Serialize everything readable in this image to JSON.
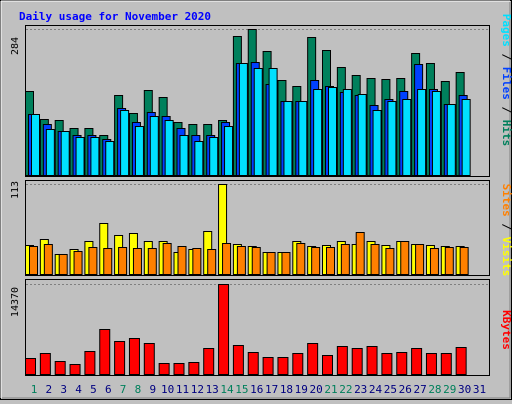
{
  "colors": {
    "background": "#c0c0c0",
    "title": "#0000ff",
    "hits": "#00805c",
    "files": "#0040ff",
    "pages": "#00e0ff",
    "visits": "#ffff00",
    "sites": "#ff8000",
    "kbytes": "#ff0000",
    "weekend_label": "#00805c",
    "weekday_label": "#000080"
  },
  "chart_data": {
    "type": "bar",
    "title": "Daily usage for November 2020",
    "x": [
      1,
      2,
      3,
      4,
      5,
      6,
      7,
      8,
      9,
      10,
      11,
      12,
      13,
      14,
      15,
      16,
      17,
      18,
      19,
      20,
      21,
      22,
      23,
      24,
      25,
      26,
      27,
      28,
      29,
      30,
      31
    ],
    "x_labels": [
      "1",
      "2",
      "3",
      "4",
      "5",
      "6",
      "7",
      "8",
      "9",
      "10",
      "11",
      "12",
      "13",
      "14",
      "15",
      "16",
      "17",
      "18",
      "19",
      "20",
      "21",
      "22",
      "23",
      "24",
      "25",
      "26",
      "27",
      "28",
      "29",
      "30",
      "31"
    ],
    "weekend_days": [
      1,
      7,
      8,
      14,
      15,
      21,
      22,
      28,
      29
    ],
    "panels": [
      {
        "id": "traffic",
        "ymax": 284,
        "ymax_label": "284",
        "right_label_parts": [
          {
            "text": "Pages",
            "color": "#00e0ff"
          },
          {
            "text": " / ",
            "color": "#000000"
          },
          {
            "text": "Files",
            "color": "#0040ff"
          },
          {
            "text": " / ",
            "color": "#000000"
          },
          {
            "text": "Hits",
            "color": "#00805c"
          }
        ],
        "series": [
          {
            "name": "Hits",
            "color": "#00805c",
            "values": [
              164,
              110,
              108,
              92,
              92,
              80,
              156,
              122,
              166,
              152,
              104,
              100,
              100,
              108,
              271,
              284,
              241,
              185,
              174,
              268,
              244,
              211,
              196,
              189,
              188,
              189,
              238,
              218,
              183,
              200,
              null
            ]
          },
          {
            "name": "Files",
            "color": "#0040ff",
            "values": [
              120,
              100,
              86,
              80,
              80,
              72,
              132,
              104,
              124,
              116,
              92,
              80,
              80,
              104,
              219,
              220,
              178,
              144,
              144,
              185,
              174,
              163,
              157,
              137,
              148,
              165,
              217,
              169,
              140,
              156,
              null
            ]
          },
          {
            "name": "Pages",
            "color": "#00e0ff",
            "values": [
              120,
              91,
              86,
              76,
              76,
              68,
              128,
              96,
              116,
              108,
              80,
              68,
              76,
              96,
              219,
              209,
              208,
              144,
              144,
              168,
              172,
              169,
              158,
              128,
              144,
              148,
              168,
              165,
              140,
              148,
              null
            ]
          }
        ]
      },
      {
        "id": "visits",
        "ymax": 113,
        "ymax_label": "113",
        "right_label_parts": [
          {
            "text": "Sites",
            "color": "#ff8000"
          },
          {
            "text": " / ",
            "color": "#000000"
          },
          {
            "text": "Visits",
            "color": "#ffff00"
          }
        ],
        "series": [
          {
            "name": "Visits",
            "color": "#ffff00",
            "values": [
              37,
              45,
              26,
              32,
              42,
              64,
              50,
              52,
              42,
              42,
              28,
              32,
              55,
              113,
              38,
              36,
              29,
              28,
              42,
              36,
              37,
              42,
              38,
              42,
              37,
              42,
              38,
              37,
              36,
              36,
              null
            ]
          },
          {
            "name": "Sites",
            "color": "#ff8000",
            "values": [
              36,
              38,
              26,
              30,
              35,
              33,
              35,
              33,
              33,
              40,
              36,
              34,
              32,
              40,
              36,
              35,
              28,
              28,
              40,
              35,
              35,
              38,
              54,
              38,
              34,
              42,
              38,
              34,
              35,
              35,
              null
            ]
          }
        ]
      },
      {
        "id": "kbytes",
        "ymax": 14370,
        "ymax_label": "14370",
        "right_label_parts": [
          {
            "text": "KBytes",
            "color": "#ff0000"
          }
        ],
        "series": [
          {
            "name": "KBytes",
            "color": "#ff0000",
            "values": [
              2700,
              3500,
              2200,
              1800,
              3800,
              7200,
              5300,
              5900,
              5100,
              1900,
              1900,
              2000,
              4300,
              14370,
              4700,
              3600,
              2900,
              2900,
              3500,
              5100,
              3100,
              4600,
              4200,
              4600,
              3500,
              3600,
              4300,
              3500,
              3500,
              4500,
              null
            ]
          }
        ]
      }
    ]
  }
}
